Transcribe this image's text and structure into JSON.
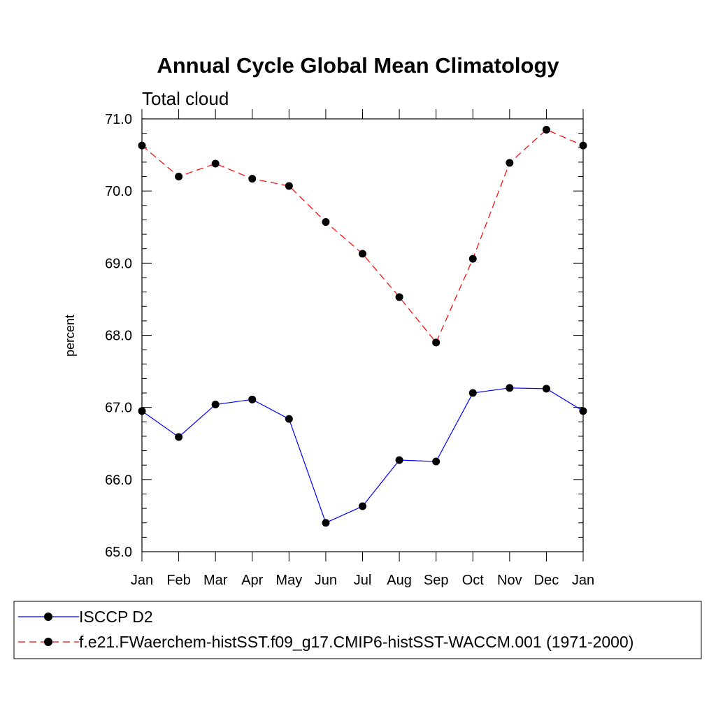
{
  "chart_data": {
    "type": "line",
    "title": "Annual Cycle Global Mean Climatology",
    "subtitle": "Total cloud",
    "xlabel": "",
    "ylabel": "percent",
    "ylim": [
      65.0,
      71.0
    ],
    "yticks": [
      "65.0",
      "66.0",
      "67.0",
      "68.0",
      "69.0",
      "70.0",
      "71.0"
    ],
    "categories": [
      "Jan",
      "Feb",
      "Mar",
      "Apr",
      "May",
      "Jun",
      "Jul",
      "Aug",
      "Sep",
      "Oct",
      "Nov",
      "Dec",
      "Jan"
    ],
    "series": [
      {
        "name": "ISCCP D2",
        "color": "#0000ff",
        "style": "solid",
        "values": [
          66.95,
          66.59,
          67.04,
          67.11,
          66.84,
          65.4,
          65.63,
          66.27,
          66.25,
          67.2,
          67.27,
          67.26,
          66.95
        ]
      },
      {
        "name": "f.e21.FWaerchem-histSST.f09_g17.CMIP6-histSST-WACCM.001 (1971-2000)",
        "color": "#ff0000",
        "style": "dashed",
        "values": [
          70.63,
          70.2,
          70.38,
          70.17,
          70.07,
          69.57,
          69.13,
          68.53,
          67.9,
          69.06,
          70.39,
          70.85,
          70.63
        ]
      }
    ],
    "legend_position": "bottom"
  }
}
